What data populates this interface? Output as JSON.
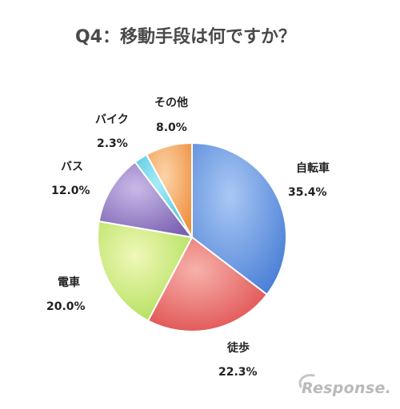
{
  "chart_data": {
    "type": "pie",
    "title": "Q4：移動手段は何ですか？",
    "categories": [
      "自転車",
      "徒歩",
      "電車",
      "バス",
      "バイク",
      "その他"
    ],
    "values": [
      35.4,
      22.3,
      20.0,
      12.0,
      2.3,
      8.0
    ],
    "value_labels": [
      "35.4%",
      "22.3%",
      "20.0%",
      "12.0%",
      "2.3%",
      "8.0%"
    ],
    "unit": "%",
    "start": "12 o'clock",
    "direction": "clockwise",
    "colors": [
      "#5b8fe0",
      "#e45a5a",
      "#b4dc60",
      "#8870b8",
      "#55c8e0",
      "#f59d55"
    ],
    "legend": "none (labels outside slices)"
  },
  "watermark": "Response."
}
